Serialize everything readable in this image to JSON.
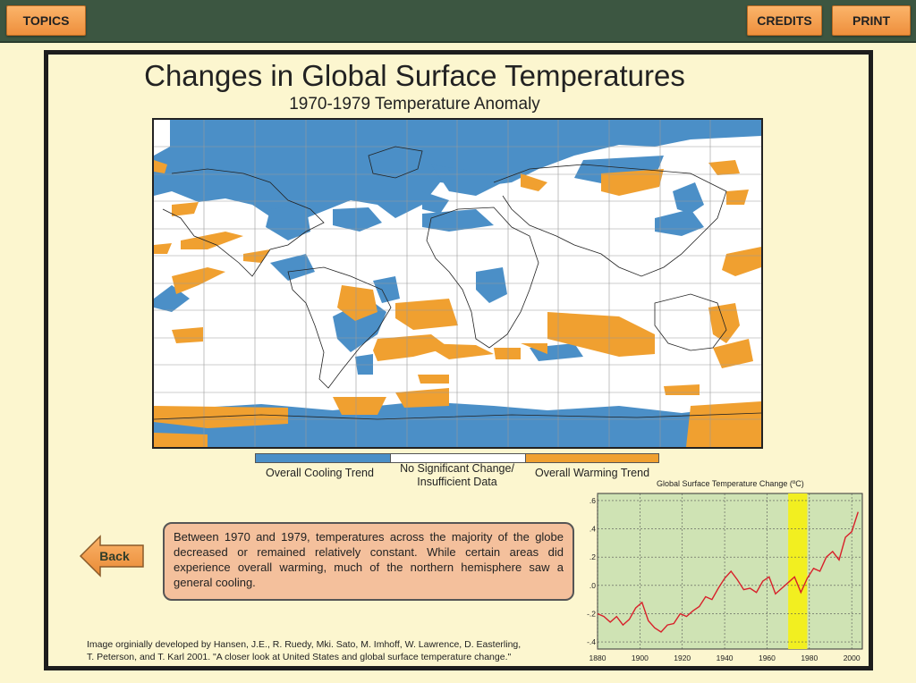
{
  "topbar": {
    "topics_label": "TOPICS",
    "credits_label": "CREDITS",
    "print_label": "PRINT"
  },
  "page": {
    "title": "Changes in Global Surface Temperatures",
    "subtitle": "1970-1979 Temperature Anomaly"
  },
  "legend": {
    "cooling_label": "Overall Cooling Trend",
    "nochange_line1": "No Significant Change/",
    "nochange_line2": "Insufficient Data",
    "warming_label": "Overall Warming Trend",
    "cooling_color": "#4b8fc7",
    "nochange_color": "#ffffff",
    "warming_color": "#f0a030"
  },
  "back_label": "Back",
  "description": "Between 1970 and 1979, temperatures across the majority of the globe decreased or remained relatively constant. While certain areas did experience overall warming, much of the northern hemisphere saw a general cooling.",
  "credit_line1": "Image orginially developed by Hansen, J.E., R. Ruedy, Mki. Sato, M. Imhoff, W. Lawrence, D. Easterling,",
  "credit_line2": "T. Peterson, and T. Karl 2001. \"A closer look at United States and global surface temperature change.\"",
  "chart_data": {
    "type": "line",
    "title": "Global Surface Temperature Change (ºC)",
    "xlim": [
      1880,
      2005
    ],
    "ylim": [
      -0.45,
      0.65
    ],
    "xticks": [
      1880,
      1900,
      1920,
      1940,
      1960,
      1980,
      2000
    ],
    "yticks": [
      0.6,
      0.4,
      0.2,
      0.0,
      -0.2,
      -0.4
    ],
    "ytick_labels": [
      ".6",
      ".4",
      ".2",
      ".0",
      "-.2",
      "-.4"
    ],
    "highlight_range": [
      1970,
      1979
    ],
    "highlight_color": "#f2ef20",
    "line_color": "#d8202a",
    "x": [
      1880,
      1883,
      1886,
      1889,
      1892,
      1895,
      1898,
      1901,
      1904,
      1907,
      1910,
      1913,
      1916,
      1919,
      1922,
      1925,
      1928,
      1931,
      1934,
      1937,
      1940,
      1943,
      1946,
      1949,
      1952,
      1955,
      1958,
      1961,
      1964,
      1967,
      1970,
      1973,
      1976,
      1979,
      1982,
      1985,
      1988,
      1991,
      1994,
      1997,
      2000,
      2003
    ],
    "y": [
      -0.2,
      -0.22,
      -0.26,
      -0.22,
      -0.28,
      -0.24,
      -0.16,
      -0.12,
      -0.25,
      -0.3,
      -0.33,
      -0.28,
      -0.27,
      -0.2,
      -0.22,
      -0.18,
      -0.15,
      -0.08,
      -0.1,
      -0.02,
      0.05,
      0.1,
      0.04,
      -0.03,
      -0.02,
      -0.05,
      0.03,
      0.06,
      -0.06,
      -0.02,
      0.02,
      0.06,
      -0.05,
      0.05,
      0.12,
      0.1,
      0.2,
      0.24,
      0.18,
      0.34,
      0.38,
      0.52
    ]
  }
}
